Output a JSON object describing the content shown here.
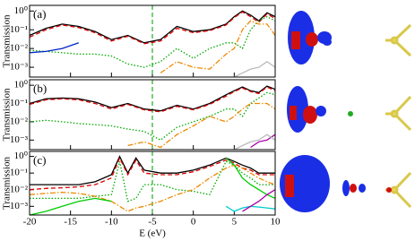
{
  "chart_data": [
    {
      "type": "line",
      "label": "(a)",
      "ylabel": "Transmission",
      "log": true,
      "ylim": [
        0.0003,
        2
      ],
      "xlim": [
        -20,
        10
      ],
      "vline": -5,
      "yticks": [
        {
          "value": 1,
          "label": "10⁰"
        },
        {
          "value": 0.1,
          "label": "10⁻¹"
        },
        {
          "value": 0.01,
          "label": "10⁻²"
        },
        {
          "value": 0.001,
          "label": "10⁻³"
        }
      ],
      "xticks": [
        -20,
        -15,
        -10,
        -5,
        0,
        5,
        10
      ],
      "x": [
        -20,
        -18,
        -16,
        -14,
        -12,
        -10,
        -8,
        -6,
        -4,
        -2,
        0,
        2,
        4,
        5,
        6,
        7,
        8,
        9,
        10
      ],
      "series": [
        {
          "color": "#000000",
          "style": "solid",
          "values": [
            0.05,
            0.12,
            0.2,
            0.15,
            0.08,
            0.03,
            0.05,
            0.02,
            0.03,
            0.15,
            0.08,
            0.1,
            0.2,
            0.5,
            1.0,
            0.6,
            0.3,
            0.8,
            0.5
          ]
        },
        {
          "color": "#dd0000",
          "style": "dashed",
          "values": [
            0.04,
            0.1,
            0.18,
            0.13,
            0.07,
            0.025,
            0.045,
            0.018,
            0.025,
            0.12,
            0.07,
            0.09,
            0.18,
            0.45,
            0.9,
            0.5,
            0.25,
            0.7,
            0.4
          ]
        },
        {
          "color": "#00aa00",
          "style": "dotted",
          "values": [
            0.008,
            0.007,
            0.006,
            0.005,
            0.005,
            0.004,
            0.0015,
            0.001,
            0.002,
            0.01,
            0.003,
            0.01,
            0.02,
            0.02,
            0.01,
            0.1,
            0.3,
            0.5,
            0.3
          ]
        },
        {
          "color": "#0022cc",
          "style": "solid",
          "values": [
            0.006,
            0.007,
            0.01,
            0.02,
            null,
            null,
            null,
            null,
            null,
            null,
            null,
            null,
            null,
            null,
            null,
            null,
            null,
            null,
            null
          ]
        },
        {
          "color": "#ee8800",
          "style": "dashdot",
          "values": [
            null,
            null,
            null,
            null,
            null,
            null,
            null,
            null,
            0.0005,
            0.002,
            0.001,
            0.0008,
            0.005,
            0.01,
            0.1,
            0.3,
            0.2,
            0.2,
            0.05
          ]
        },
        {
          "color": "#bbbbbb",
          "style": "solid",
          "values": [
            null,
            null,
            null,
            null,
            null,
            null,
            null,
            null,
            null,
            null,
            null,
            null,
            null,
            0.0003,
            0.0005,
            0.0008,
            0.001,
            0.002,
            0.001
          ]
        }
      ]
    },
    {
      "type": "line",
      "label": "(b)",
      "ylabel": "Transmission",
      "log": true,
      "ylim": [
        0.0003,
        2
      ],
      "xlim": [
        -20,
        10
      ],
      "vline": -5,
      "yticks": [
        {
          "value": 1,
          "label": "10⁰"
        },
        {
          "value": 0.1,
          "label": "10⁻¹"
        },
        {
          "value": 0.01,
          "label": "10⁻²"
        },
        {
          "value": 0.001,
          "label": "10⁻³"
        }
      ],
      "xticks": [
        -20,
        -15,
        -10,
        -5,
        0,
        5,
        10
      ],
      "x": [
        -20,
        -18,
        -16,
        -14,
        -12,
        -10,
        -8,
        -6,
        -4,
        -2,
        0,
        2,
        4,
        5,
        6,
        7,
        8,
        9,
        10
      ],
      "series": [
        {
          "color": "#000000",
          "style": "solid",
          "values": [
            0.1,
            0.18,
            0.2,
            0.18,
            0.12,
            0.06,
            0.1,
            0.05,
            0.04,
            0.08,
            0.05,
            0.1,
            0.3,
            0.5,
            0.8,
            0.5,
            0.4,
            0.9,
            0.6
          ]
        },
        {
          "color": "#dd0000",
          "style": "dashed",
          "values": [
            0.09,
            0.16,
            0.18,
            0.16,
            0.1,
            0.05,
            0.09,
            0.045,
            0.035,
            0.07,
            0.045,
            0.09,
            0.25,
            0.45,
            0.7,
            0.45,
            0.35,
            0.8,
            0.5
          ]
        },
        {
          "color": "#00aa00",
          "style": "dotted",
          "values": [
            0.01,
            0.012,
            0.01,
            0.008,
            0.007,
            0.006,
            0.004,
            0.003,
            0.001,
            0.005,
            0.01,
            0.02,
            0.05,
            0.05,
            0.02,
            0.1,
            0.2,
            0.4,
            0.3
          ]
        },
        {
          "color": "#ee8800",
          "style": "dashdot",
          "values": [
            null,
            null,
            null,
            null,
            null,
            null,
            0.0005,
            0.0008,
            0.0004,
            0.002,
            0.006,
            0.02,
            0.01,
            0.02,
            0.05,
            0.1,
            0.1,
            0.1,
            0.05
          ]
        },
        {
          "color": "#aa00aa",
          "style": "solid",
          "values": [
            null,
            null,
            null,
            null,
            null,
            null,
            null,
            null,
            null,
            null,
            null,
            null,
            null,
            null,
            null,
            0.0004,
            0.0008,
            0.001,
            0.002
          ]
        },
        {
          "color": "#bbbbbb",
          "style": "solid",
          "values": [
            null,
            null,
            null,
            null,
            null,
            null,
            null,
            null,
            null,
            null,
            null,
            null,
            null,
            0.0003,
            0.0005,
            0.0008,
            0.001,
            0.002,
            0.001
          ]
        }
      ]
    },
    {
      "type": "line",
      "label": "(c)",
      "ylabel": "Transmission",
      "xlabel": "E (eV)",
      "log": true,
      "ylim": [
        0.0003,
        2
      ],
      "xlim": [
        -20,
        10
      ],
      "vline": -5,
      "yticks": [
        {
          "value": 1,
          "label": "10⁰"
        },
        {
          "value": 0.1,
          "label": "10⁻¹"
        },
        {
          "value": 0.01,
          "label": "10⁻²"
        },
        {
          "value": 0.001,
          "label": "10⁻³"
        }
      ],
      "xticks": [
        -20,
        -15,
        -10,
        -5,
        0,
        5,
        10
      ],
      "x": [
        -20,
        -18,
        -16,
        -14,
        -12,
        -10,
        -9,
        -8,
        -7,
        -6,
        -4,
        -2,
        0,
        2,
        4,
        5,
        6,
        7,
        8,
        9,
        10
      ],
      "series": [
        {
          "color": "#000000",
          "style": "solid",
          "values": [
            0.02,
            0.02,
            0.02,
            0.02,
            0.03,
            0.08,
            1.0,
            0.1,
            0.8,
            0.15,
            0.1,
            0.1,
            0.15,
            0.3,
            0.8,
            0.5,
            0.3,
            0.2,
            0.1,
            0.1,
            0.1
          ]
        },
        {
          "color": "#dd0000",
          "style": "dashed",
          "values": [
            0.01,
            0.012,
            0.013,
            0.015,
            0.02,
            0.05,
            0.8,
            0.08,
            0.6,
            0.1,
            0.08,
            0.08,
            0.12,
            0.25,
            0.6,
            0.4,
            0.2,
            0.15,
            0.08,
            0.08,
            0.08
          ]
        },
        {
          "color": "#00aa00",
          "style": "dotted",
          "values": [
            0.003,
            0.003,
            0.003,
            0.003,
            0.004,
            0.005,
            0.5,
            0.002,
            0.003,
            0.02,
            0.02,
            0.01,
            0.008,
            0.005,
            0.5,
            0.3,
            0.1,
            0.05,
            0.02,
            0.02,
            0.02
          ]
        },
        {
          "color": "#ee8800",
          "style": "dashdot",
          "values": [
            0.005,
            0.006,
            0.007,
            0.006,
            0.004,
            0.002,
            0.001,
            0.0005,
            0.0008,
            0.001,
            0.002,
            0.005,
            0.01,
            0.05,
            0.2,
            0.3,
            0.2,
            0.1,
            0.05,
            0.03,
            0.02
          ]
        },
        {
          "color": "#00cc00",
          "style": "solid",
          "values": [
            0.0003,
            0.0005,
            0.001,
            0.002,
            0.003,
            0.002,
            null,
            null,
            null,
            null,
            null,
            null,
            null,
            null,
            0.8,
            0.3,
            0.05,
            0.02,
            0.01,
            0.005,
            0.003
          ]
        },
        {
          "color": "#00cccc",
          "style": "solid",
          "values": [
            null,
            null,
            null,
            null,
            null,
            null,
            null,
            null,
            null,
            null,
            null,
            null,
            null,
            null,
            0.001,
            0.0005,
            0.0008,
            0.001,
            0.0009,
            0.0008,
            0.0007
          ]
        },
        {
          "color": "#aa00aa",
          "style": "solid",
          "values": [
            null,
            null,
            null,
            null,
            null,
            null,
            null,
            null,
            null,
            null,
            null,
            null,
            null,
            null,
            null,
            null,
            0.0005,
            0.001,
            0.002,
            0.005,
            0.01
          ]
        }
      ]
    }
  ]
}
